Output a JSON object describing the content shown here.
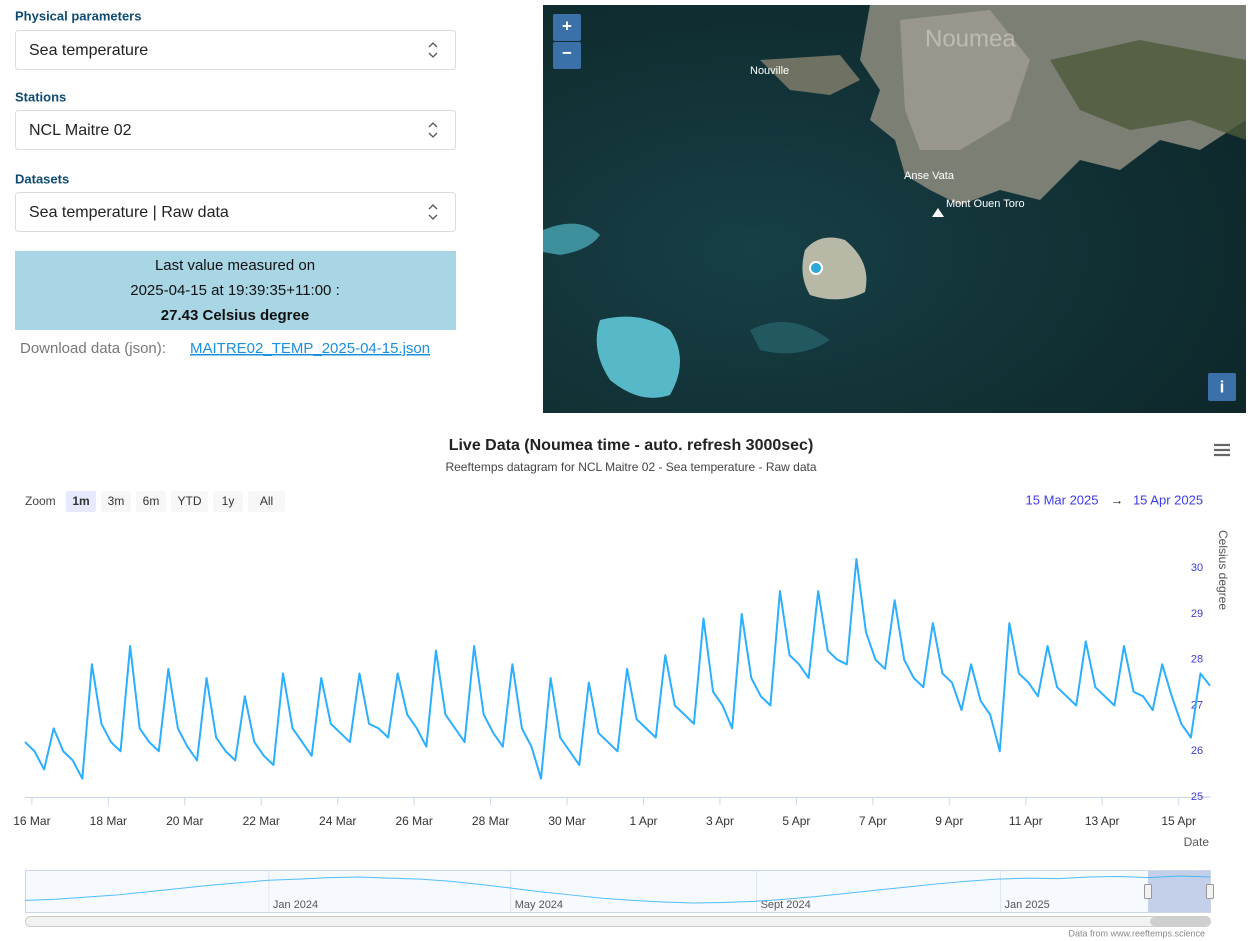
{
  "form": {
    "fields": [
      {
        "label": "Physical parameters",
        "value": "Sea temperature"
      },
      {
        "label": "Stations",
        "value": "NCL Maitre 02"
      },
      {
        "label": "Datasets",
        "value": "Sea temperature | Raw data"
      }
    ],
    "last_value": {
      "line1": "Last value measured on",
      "line2": "2025-04-15 at 19:39:35+11:00 :",
      "line3": "27.43 Celsius degree"
    },
    "download": {
      "text": "Download data (json):",
      "link": "MAITRE02_TEMP_2025-04-15.json"
    }
  },
  "map": {
    "zoom_in": "+",
    "zoom_out": "−",
    "info": "i",
    "places": [
      "Noumea",
      "Nouville",
      "Anse Vata",
      "Mont Ouen Toro"
    ]
  },
  "chart_data": {
    "type": "line",
    "title": "Live Data (Noumea time - auto. refresh 3000sec)",
    "subtitle": "Reeftemps datagram for NCL Maitre 02 - Sea temperature - Raw data",
    "zoom_label": "Zoom",
    "zoom_buttons": [
      "1m",
      "3m",
      "6m",
      "YTD",
      "1y",
      "All"
    ],
    "range_arrow": "→",
    "xlim": [
      {
        "value": "2025-03-15T19:40",
        "label": "15 Mar 2025"
      },
      {
        "value": "2025-04-15T19:40",
        "label": "15 Apr 2025"
      }
    ],
    "xticks": [
      {
        "value": "2025-03-16T00:00",
        "label": "16 Mar"
      },
      {
        "value": "2025-03-18T00:00",
        "label": "18 Mar"
      },
      {
        "value": "2025-03-20T00:00",
        "label": "20 Mar"
      },
      {
        "value": "2025-03-22T00:00",
        "label": "22 Mar"
      },
      {
        "value": "2025-03-24T00:00",
        "label": "24 Mar"
      },
      {
        "value": "2025-03-26T00:00",
        "label": "26 Mar"
      },
      {
        "value": "2025-03-28T00:00",
        "label": "28 Mar"
      },
      {
        "value": "2025-03-30T00:00",
        "label": "30 Mar"
      },
      {
        "value": "2025-04-01T00:00",
        "label": "1 Apr"
      },
      {
        "value": "2025-04-03T00:00",
        "label": "3 Apr"
      },
      {
        "value": "2025-04-05T00:00",
        "label": "5 Apr"
      },
      {
        "value": "2025-04-07T00:00",
        "label": "7 Apr"
      },
      {
        "value": "2025-04-09T00:00",
        "label": "9 Apr"
      },
      {
        "value": "2025-04-11T00:00",
        "label": "11 Apr"
      },
      {
        "value": "2025-04-13T00:00",
        "label": "13 Apr"
      },
      {
        "value": "2025-04-15T00:00",
        "label": "15 Apr"
      }
    ],
    "xlabel": "Date",
    "ylabel": "Celsius degree",
    "ylim": [
      25,
      30.9
    ],
    "yticks": [
      25,
      26,
      27,
      28,
      29,
      30
    ],
    "color": "#2caffe",
    "values": [
      26.2,
      26.0,
      25.6,
      26.5,
      26.0,
      25.8,
      25.4,
      27.9,
      26.6,
      26.2,
      26.0,
      28.3,
      26.5,
      26.2,
      26.0,
      27.8,
      26.5,
      26.1,
      25.8,
      27.6,
      26.3,
      26.0,
      25.8,
      27.2,
      26.2,
      25.9,
      25.7,
      27.7,
      26.5,
      26.2,
      25.9,
      27.6,
      26.6,
      26.4,
      26.2,
      27.7,
      26.6,
      26.5,
      26.3,
      27.7,
      26.8,
      26.5,
      26.1,
      28.2,
      26.8,
      26.5,
      26.2,
      28.3,
      26.8,
      26.4,
      26.1,
      27.9,
      26.5,
      26.1,
      25.4,
      27.6,
      26.3,
      26.0,
      25.7,
      27.5,
      26.4,
      26.2,
      26.0,
      27.8,
      26.7,
      26.5,
      26.3,
      28.1,
      27.0,
      26.8,
      26.6,
      28.9,
      27.3,
      27.0,
      26.5,
      29.0,
      27.6,
      27.2,
      27.0,
      29.5,
      28.1,
      27.9,
      27.6,
      29.5,
      28.2,
      28.0,
      27.9,
      30.2,
      28.6,
      28.0,
      27.8,
      29.3,
      28.0,
      27.6,
      27.4,
      28.8,
      27.7,
      27.5,
      26.9,
      27.9,
      27.1,
      26.8,
      26.0,
      28.8,
      27.7,
      27.5,
      27.2,
      28.3,
      27.4,
      27.2,
      27.0,
      28.4,
      27.4,
      27.2,
      27.0,
      28.3,
      27.3,
      27.2,
      26.9,
      27.9,
      27.2,
      26.6,
      26.3,
      27.7,
      27.43
    ],
    "navigator": {
      "xlim": [
        "2023-09-01T00:00",
        "2025-04-15T19:40"
      ],
      "xticks": [
        {
          "value": "2024-01-01T00:00",
          "label": "Jan 2024"
        },
        {
          "value": "2024-05-01T00:00",
          "label": "May 2024"
        },
        {
          "value": "2024-09-01T00:00",
          "label": "Sept 2024"
        },
        {
          "value": "2025-01-01T00:00",
          "label": "Jan 2025"
        }
      ],
      "values": [
        23.0,
        23.2,
        23.6,
        24.0,
        24.6,
        25.2,
        25.8,
        26.3,
        26.8,
        27.0,
        27.3,
        27.4,
        27.2,
        27.0,
        26.6,
        26.0,
        25.3,
        24.6,
        24.0,
        23.4,
        23.0,
        22.7,
        22.5,
        22.6,
        22.8,
        23.2,
        23.7,
        24.3,
        24.9,
        25.5,
        26.1,
        26.6,
        27.0,
        27.2,
        27.1,
        27.4,
        27.5,
        27.3,
        27.6,
        27.4
      ]
    },
    "credits": "Data from www.reeftemps.science"
  }
}
